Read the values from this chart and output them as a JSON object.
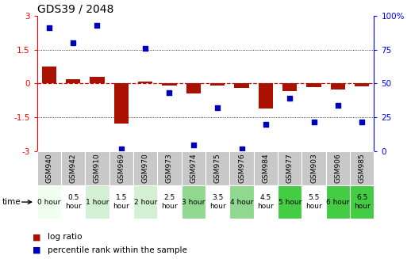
{
  "title": "GDS39 / 2048",
  "samples": [
    "GSM940",
    "GSM942",
    "GSM910",
    "GSM969",
    "GSM970",
    "GSM973",
    "GSM974",
    "GSM975",
    "GSM976",
    "GSM984",
    "GSM977",
    "GSM903",
    "GSM906",
    "GSM985"
  ],
  "time_labels": [
    "0 hour",
    "0.5\nhour",
    "1 hour",
    "1.5\nhour",
    "2 hour",
    "2.5\nhour",
    "3 hour",
    "3.5\nhour",
    "4 hour",
    "4.5\nhour",
    "5 hour",
    "5.5\nhour",
    "6 hour",
    "6.5\nhour"
  ],
  "time_bg": [
    "#f0fff0",
    "#ffffff",
    "#d4f0d4",
    "#ffffff",
    "#d4f0d4",
    "#ffffff",
    "#90d890",
    "#ffffff",
    "#90d890",
    "#ffffff",
    "#44cc44",
    "#ffffff",
    "#44cc44",
    "#44cc44"
  ],
  "log_ratio": [
    0.75,
    0.18,
    0.3,
    -1.78,
    0.1,
    -0.08,
    -0.45,
    -0.1,
    -0.18,
    -1.1,
    -0.32,
    -0.15,
    -0.28,
    -0.12
  ],
  "percentile": [
    91,
    80,
    93,
    2,
    76,
    43,
    5,
    32,
    2,
    20,
    39,
    22,
    34,
    22
  ],
  "ylim_left": [
    -3,
    3
  ],
  "ylim_right": [
    0,
    100
  ],
  "yticks_left": [
    -3,
    -1.5,
    0,
    1.5,
    3
  ],
  "yticks_right": [
    0,
    25,
    50,
    75,
    100
  ],
  "bar_color": "#aa1100",
  "dot_color": "#0000bb",
  "hline_color": "#cc0000",
  "dotline_color": "#000000",
  "title_fontsize": 10,
  "axis_fontsize": 7.5,
  "legend_fontsize": 7.5,
  "sample_label_fontsize": 6.5,
  "time_label_fontsize": 6.5,
  "gsm_bg": "#c8c8c8",
  "gsm_edge": "#ffffff",
  "time_edge": "#ffffff"
}
